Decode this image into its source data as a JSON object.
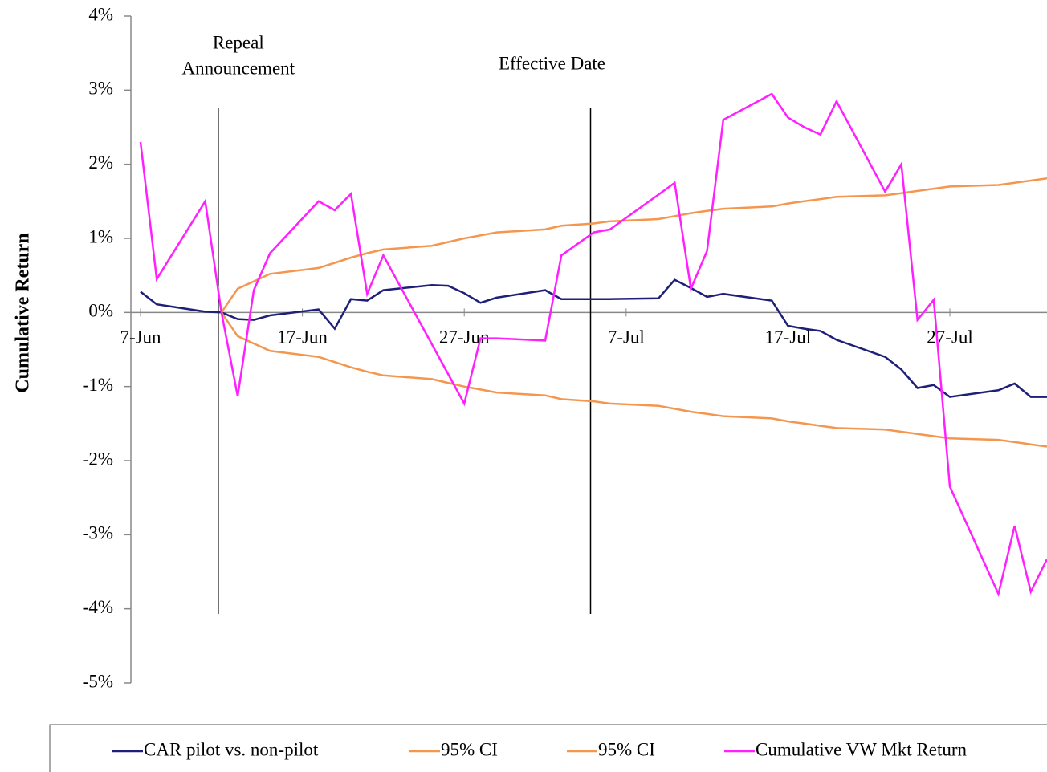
{
  "chart_data": {
    "type": "line",
    "y_label": "Cumulative Return",
    "x": [
      "06-07",
      "06-08",
      "06-11",
      "06-12",
      "06-13",
      "06-14",
      "06-15",
      "06-18",
      "06-19",
      "06-20",
      "06-21",
      "06-22",
      "06-25",
      "06-26",
      "06-27",
      "06-28",
      "06-29",
      "07-02",
      "07-03",
      "07-05",
      "07-06",
      "07-09",
      "07-10",
      "07-11",
      "07-12",
      "07-13",
      "07-16",
      "07-17",
      "07-18",
      "07-19",
      "07-20",
      "07-23",
      "07-24",
      "07-25",
      "07-26",
      "07-27",
      "07-30",
      "07-31",
      "08-01",
      "08-02"
    ],
    "xlim": [
      "06-07",
      "08-02"
    ],
    "xticks": [
      {
        "value": "06-07",
        "label": "7-Jun"
      },
      {
        "value": "06-17",
        "label": "17-Jun"
      },
      {
        "value": "06-27",
        "label": "27-Jun"
      },
      {
        "value": "07-07",
        "label": "7-Jul"
      },
      {
        "value": "07-17",
        "label": "17-Jul"
      },
      {
        "value": "07-27",
        "label": "27-Jul"
      }
    ],
    "ylim": [
      -5,
      4
    ],
    "yticks": [
      {
        "value": -5,
        "label": "-5%"
      },
      {
        "value": -4,
        "label": "-4%"
      },
      {
        "value": -3,
        "label": "-3%"
      },
      {
        "value": -2,
        "label": "-2%"
      },
      {
        "value": -1,
        "label": "-1%"
      },
      {
        "value": 0,
        "label": "0%"
      },
      {
        "value": 1,
        "label": "1%"
      },
      {
        "value": 2,
        "label": "2%"
      },
      {
        "value": 3,
        "label": "3%"
      },
      {
        "value": 4,
        "label": "4%"
      }
    ],
    "events": [
      {
        "x": "06-12",
        "label": [
          "Repeal",
          "Announcement"
        ]
      },
      {
        "x": "07-05",
        "label": [
          "Effective Date"
        ]
      }
    ],
    "series": [
      {
        "name": "CAR pilot vs. non-pilot",
        "color": "#1f1f7a",
        "values": [
          0.28,
          0.11,
          0.01,
          0.0,
          -0.09,
          -0.1,
          -0.04,
          0.04,
          -0.22,
          0.18,
          0.16,
          0.3,
          0.37,
          0.36,
          0.26,
          0.13,
          0.2,
          0.3,
          0.18,
          0.18,
          0.18,
          0.19,
          0.44,
          0.33,
          0.21,
          0.25,
          0.16,
          -0.18,
          -0.22,
          -0.25,
          -0.37,
          -0.6,
          -0.77,
          -1.02,
          -0.98,
          -1.14,
          -1.05,
          -0.96,
          -1.14,
          -1.14
        ]
      },
      {
        "name": "95% CI",
        "color": "#f5964f",
        "values": [
          null,
          null,
          null,
          0.0,
          0.32,
          0.42,
          0.52,
          0.6,
          0.67,
          0.74,
          0.8,
          0.85,
          0.9,
          0.95,
          1.0,
          1.04,
          1.08,
          1.12,
          1.17,
          1.2,
          1.23,
          1.26,
          1.3,
          1.34,
          1.37,
          1.4,
          1.43,
          1.47,
          1.5,
          1.53,
          1.56,
          1.58,
          1.61,
          1.64,
          1.67,
          1.7,
          1.72,
          1.75,
          1.78,
          1.81
        ]
      },
      {
        "name": "95% CI",
        "color": "#f5964f",
        "values": [
          null,
          null,
          null,
          0.0,
          -0.32,
          -0.42,
          -0.52,
          -0.6,
          -0.67,
          -0.74,
          -0.8,
          -0.85,
          -0.9,
          -0.95,
          -1.0,
          -1.04,
          -1.08,
          -1.12,
          -1.17,
          -1.2,
          -1.23,
          -1.26,
          -1.3,
          -1.34,
          -1.37,
          -1.4,
          -1.43,
          -1.47,
          -1.5,
          -1.53,
          -1.56,
          -1.58,
          -1.61,
          -1.64,
          -1.67,
          -1.7,
          -1.72,
          -1.75,
          -1.78,
          -1.81
        ]
      },
      {
        "name": "Cumulative VW Mkt Return",
        "color": "#ff1fff",
        "values": [
          2.3,
          0.45,
          1.5,
          0.0,
          -1.13,
          0.3,
          0.8,
          1.5,
          1.38,
          1.6,
          0.25,
          0.77,
          -0.43,
          -0.83,
          -1.23,
          -0.35,
          -0.35,
          -0.38,
          0.77,
          1.08,
          1.12,
          1.59,
          1.75,
          0.32,
          0.83,
          2.6,
          2.95,
          2.63,
          2.5,
          2.4,
          2.85,
          1.63,
          2.0,
          -0.1,
          0.17,
          -2.35,
          -3.8,
          -2.88,
          -3.77,
          -3.33
        ]
      }
    ]
  }
}
